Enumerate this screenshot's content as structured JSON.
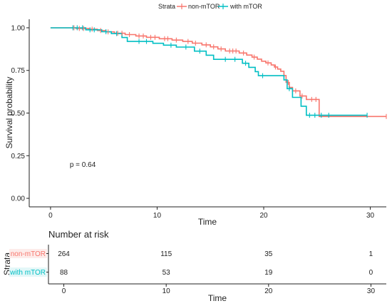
{
  "chart_data": {
    "type": "line",
    "subtype": "kaplan-meier",
    "legend": {
      "title": "Strata",
      "placement": "top",
      "entries": [
        "non-mTOR",
        "with mTOR"
      ]
    },
    "xlabel": "Time",
    "ylabel": "Survival probability",
    "xlim": [
      -2,
      31.5
    ],
    "ylim": [
      -0.05,
      1.05
    ],
    "x_ticks": [
      0,
      10,
      20,
      30
    ],
    "y_ticks": [
      0,
      0.25,
      0.5,
      0.75,
      1
    ],
    "y_tick_labels": [
      "0.00",
      "0.25",
      "0.50",
      "0.75",
      "1.00"
    ],
    "grid": false,
    "annotation": "p = 0.64",
    "annotation_at": [
      1.8,
      0.2
    ],
    "series": [
      {
        "name": "non-mTOR",
        "color": "#F8766D",
        "steps": [
          [
            0,
            1.0
          ],
          [
            2.4,
            0.996
          ],
          [
            3.6,
            0.992
          ],
          [
            4.4,
            0.984
          ],
          [
            5.2,
            0.976
          ],
          [
            6.0,
            0.968
          ],
          [
            7.0,
            0.96
          ],
          [
            8.0,
            0.952
          ],
          [
            9.0,
            0.944
          ],
          [
            10.2,
            0.936
          ],
          [
            11.4,
            0.928
          ],
          [
            12.4,
            0.92
          ],
          [
            13.3,
            0.91
          ],
          [
            14.2,
            0.9
          ],
          [
            15.0,
            0.888
          ],
          [
            15.7,
            0.876
          ],
          [
            16.4,
            0.864
          ],
          [
            17.7,
            0.852
          ],
          [
            18.4,
            0.84
          ],
          [
            18.9,
            0.828
          ],
          [
            19.4,
            0.816
          ],
          [
            19.8,
            0.804
          ],
          [
            20.2,
            0.794
          ],
          [
            20.7,
            0.782
          ],
          [
            21.0,
            0.77
          ],
          [
            21.3,
            0.758
          ],
          [
            21.6,
            0.745
          ],
          [
            21.9,
            0.72
          ],
          [
            22.1,
            0.68
          ],
          [
            22.4,
            0.65
          ],
          [
            22.7,
            0.63
          ],
          [
            23.4,
            0.6
          ],
          [
            24.0,
            0.58
          ],
          [
            25.2,
            0.48
          ],
          [
            31.5,
            0.48
          ]
        ],
        "censored": [
          [
            2.2,
            1.0
          ],
          [
            2.7,
            0.996
          ],
          [
            3.1,
            0.996
          ],
          [
            3.9,
            0.992
          ],
          [
            4.7,
            0.984
          ],
          [
            5.4,
            0.976
          ],
          [
            6.3,
            0.968
          ],
          [
            6.7,
            0.968
          ],
          [
            7.4,
            0.96
          ],
          [
            8.3,
            0.952
          ],
          [
            8.7,
            0.952
          ],
          [
            9.4,
            0.944
          ],
          [
            9.8,
            0.944
          ],
          [
            10.7,
            0.936
          ],
          [
            11.0,
            0.936
          ],
          [
            11.8,
            0.928
          ],
          [
            12.9,
            0.92
          ],
          [
            13.6,
            0.91
          ],
          [
            14.6,
            0.9
          ],
          [
            15.3,
            0.888
          ],
          [
            16.0,
            0.876
          ],
          [
            16.8,
            0.864
          ],
          [
            17.1,
            0.864
          ],
          [
            17.4,
            0.864
          ],
          [
            18.1,
            0.852
          ],
          [
            19.1,
            0.828
          ],
          [
            20.4,
            0.794
          ],
          [
            21.1,
            0.77
          ],
          [
            22.3,
            0.68
          ],
          [
            23.0,
            0.63
          ],
          [
            23.6,
            0.6
          ],
          [
            24.5,
            0.58
          ],
          [
            24.9,
            0.58
          ],
          [
            31.5,
            0.48
          ]
        ]
      },
      {
        "name": "with mTOR",
        "color": "#00BFC4",
        "steps": [
          [
            0,
            1.0
          ],
          [
            3.3,
            0.988
          ],
          [
            4.8,
            0.977
          ],
          [
            5.7,
            0.966
          ],
          [
            6.7,
            0.943
          ],
          [
            7.2,
            0.92
          ],
          [
            9.6,
            0.909
          ],
          [
            10.6,
            0.898
          ],
          [
            11.8,
            0.887
          ],
          [
            13.5,
            0.863
          ],
          [
            14.6,
            0.839
          ],
          [
            15.3,
            0.815
          ],
          [
            18.0,
            0.792
          ],
          [
            18.6,
            0.768
          ],
          [
            19.2,
            0.743
          ],
          [
            19.5,
            0.719
          ],
          [
            21.9,
            0.694
          ],
          [
            22.2,
            0.643
          ],
          [
            22.7,
            0.592
          ],
          [
            23.5,
            0.54
          ],
          [
            24.0,
            0.487
          ],
          [
            29.7,
            0.487
          ]
        ],
        "censored": [
          [
            2.1,
            1.0
          ],
          [
            2.5,
            1.0
          ],
          [
            3.0,
            1.0
          ],
          [
            3.7,
            0.988
          ],
          [
            4.1,
            0.988
          ],
          [
            5.2,
            0.977
          ],
          [
            6.2,
            0.966
          ],
          [
            8.3,
            0.92
          ],
          [
            9.0,
            0.92
          ],
          [
            11.3,
            0.898
          ],
          [
            12.7,
            0.887
          ],
          [
            14.0,
            0.863
          ],
          [
            16.4,
            0.815
          ],
          [
            17.3,
            0.815
          ],
          [
            18.3,
            0.792
          ],
          [
            19.9,
            0.719
          ],
          [
            22.4,
            0.643
          ],
          [
            24.3,
            0.487
          ],
          [
            24.8,
            0.487
          ],
          [
            25.4,
            0.487
          ],
          [
            26.1,
            0.487
          ],
          [
            29.7,
            0.487
          ]
        ]
      }
    ],
    "risk_table": {
      "title": "Number at risk",
      "ylabel": "Strata",
      "xlabel": "Time",
      "times": [
        0,
        10,
        20,
        30
      ],
      "rows": [
        {
          "label": "non-mTOR",
          "color": "#F8766D",
          "values": [
            "264",
            "115",
            "35",
            "1"
          ]
        },
        {
          "label": "with mTOR",
          "color": "#00BFC4",
          "values": [
            "88",
            "53",
            "19",
            "0"
          ]
        }
      ]
    }
  }
}
